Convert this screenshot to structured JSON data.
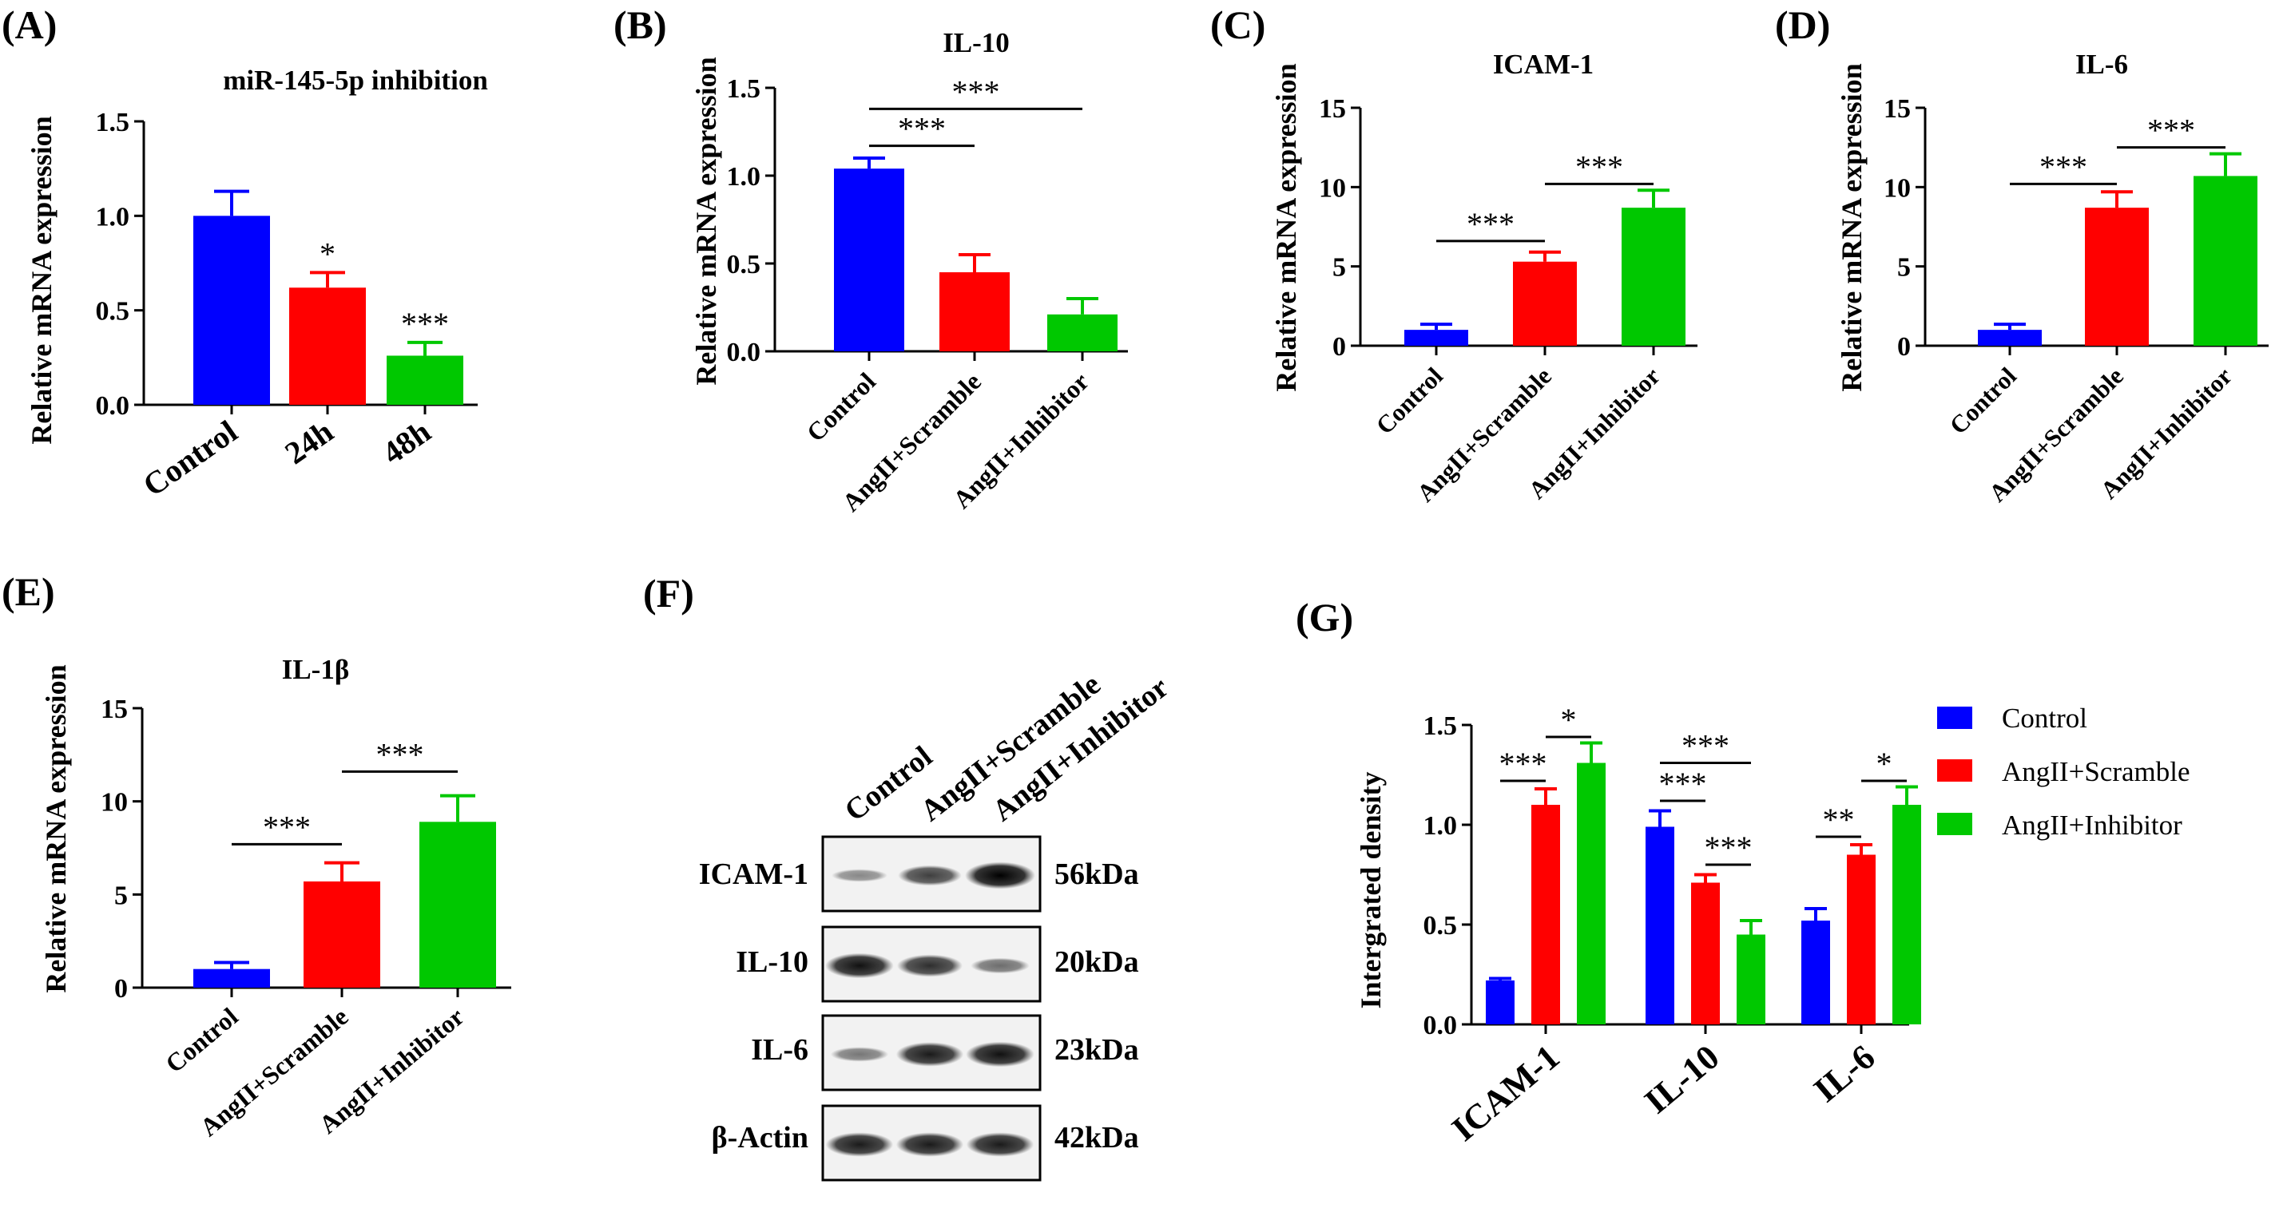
{
  "figure": {
    "colors": {
      "Control": "#0000FF",
      "AngII+Scramble": "#FF0000",
      "AngII+Inhibitor": "#00C800",
      "axis": "#000000"
    }
  },
  "chart_data": [
    {
      "id": "A",
      "panel_label": "(A)",
      "type": "bar",
      "title": "miR-145-5p inhibition",
      "ylabel": "Relative mRNA expression",
      "xlabel": "",
      "ylim": [
        0,
        1.5
      ],
      "yticks": [
        "0.0",
        "0.5",
        "1.0",
        "1.5"
      ],
      "categories": [
        "Control",
        "24h",
        "48h"
      ],
      "values": [
        1.0,
        0.62,
        0.26
      ],
      "errors": [
        0.13,
        0.08,
        0.07
      ],
      "bar_labels": [
        "",
        "*",
        "***"
      ],
      "comparisons": []
    },
    {
      "id": "B",
      "panel_label": "(B)",
      "type": "bar",
      "title": "IL-10",
      "ylabel": "Relative mRNA expression",
      "xlabel": "",
      "ylim": [
        0,
        1.5
      ],
      "yticks": [
        "0.0",
        "0.5",
        "1.0",
        "1.5"
      ],
      "categories": [
        "Control",
        "AngII+Scramble",
        "AngII+Inhibitor"
      ],
      "values": [
        1.04,
        0.45,
        0.21
      ],
      "errors": [
        0.06,
        0.1,
        0.09
      ],
      "comparisons": [
        {
          "from": 0,
          "to": 1,
          "label": "***",
          "y": 1.17
        },
        {
          "from": 0,
          "to": 2,
          "label": "***",
          "y": 1.38
        }
      ]
    },
    {
      "id": "C",
      "panel_label": "(C)",
      "type": "bar",
      "title": "ICAM-1",
      "ylabel": "Relative mRNA expression",
      "xlabel": "",
      "ylim": [
        0,
        15
      ],
      "yticks": [
        "0",
        "5",
        "10",
        "15"
      ],
      "categories": [
        "Control",
        "AngII+Scramble",
        "AngII+Inhibitor"
      ],
      "values": [
        1.0,
        5.3,
        8.7
      ],
      "errors": [
        0.35,
        0.6,
        1.1
      ],
      "comparisons": [
        {
          "from": 0,
          "to": 1,
          "label": "***",
          "y": 6.6
        },
        {
          "from": 1,
          "to": 2,
          "label": "***",
          "y": 10.2
        }
      ]
    },
    {
      "id": "D",
      "panel_label": "(D)",
      "type": "bar",
      "title": "IL-6",
      "ylabel": "Relative mRNA expression",
      "xlabel": "",
      "ylim": [
        0,
        15
      ],
      "yticks": [
        "0",
        "5",
        "10",
        "15"
      ],
      "categories": [
        "Control",
        "AngII+Scramble",
        "AngII+Inhibitor"
      ],
      "values": [
        1.0,
        8.7,
        10.7
      ],
      "errors": [
        0.35,
        1.0,
        1.4
      ],
      "comparisons": [
        {
          "from": 0,
          "to": 1,
          "label": "***",
          "y": 10.2
        },
        {
          "from": 1,
          "to": 2,
          "label": "***",
          "y": 12.5
        }
      ]
    },
    {
      "id": "E",
      "panel_label": "(E)",
      "type": "bar",
      "title": "IL-1β",
      "ylabel": "Relative mRNA expression",
      "xlabel": "",
      "ylim": [
        0,
        15
      ],
      "yticks": [
        "0",
        "5",
        "10",
        "15"
      ],
      "categories": [
        "Control",
        "AngII+Scramble",
        "AngII+Inhibitor"
      ],
      "values": [
        1.0,
        5.7,
        8.9
      ],
      "errors": [
        0.35,
        1.0,
        1.4
      ],
      "comparisons": [
        {
          "from": 0,
          "to": 1,
          "label": "***",
          "y": 7.7
        },
        {
          "from": 1,
          "to": 2,
          "label": "***",
          "y": 11.6
        }
      ]
    },
    {
      "id": "G",
      "panel_label": "(G)",
      "type": "bar",
      "ylabel": "Intergrated density",
      "xlabel": "",
      "ylim": [
        0,
        1.5
      ],
      "yticks": [
        "0.0",
        "0.5",
        "1.0",
        "1.5"
      ],
      "categories": [
        "ICAM-1",
        "IL-10",
        "IL-6"
      ],
      "series": [
        {
          "name": "Control",
          "values": [
            0.22,
            0.99,
            0.52
          ],
          "errors": [
            0.01,
            0.08,
            0.06
          ]
        },
        {
          "name": "AngII+Scramble",
          "values": [
            1.1,
            0.71,
            0.85
          ],
          "errors": [
            0.08,
            0.04,
            0.05
          ]
        },
        {
          "name": "AngII+Inhibitor",
          "values": [
            1.31,
            0.45,
            1.1
          ],
          "errors": [
            0.1,
            0.07,
            0.09
          ]
        }
      ],
      "comparisons": [
        {
          "group": 0,
          "from": 0,
          "to": 1,
          "label": "***",
          "y": 1.22
        },
        {
          "group": 0,
          "from": 1,
          "to": 2,
          "label": "*",
          "y": 1.44
        },
        {
          "group": 1,
          "from": 0,
          "to": 1,
          "label": "***",
          "y": 1.12
        },
        {
          "group": 1,
          "from": 0,
          "to": 2,
          "label": "***",
          "y": 1.31
        },
        {
          "group": 1,
          "from": 1,
          "to": 2,
          "label": "***",
          "y": 0.8
        },
        {
          "group": 2,
          "from": 0,
          "to": 1,
          "label": "**",
          "y": 0.94
        },
        {
          "group": 2,
          "from": 1,
          "to": 2,
          "label": "*",
          "y": 1.22
        }
      ],
      "legend": [
        "Control",
        "AngII+Scramble",
        "AngII+Inhibitor"
      ],
      "legend_position": "top-right"
    }
  ],
  "western_blot": {
    "panel_label": "(F)",
    "lanes": [
      "Control",
      "AngII+Scramble",
      "AngII+Inhibitor"
    ],
    "rows": [
      {
        "protein": "ICAM-1",
        "size": "56kDa",
        "band_intensity": [
          0.25,
          0.65,
          1.0
        ]
      },
      {
        "protein": "IL-10",
        "size": "20kDa",
        "band_intensity": [
          0.9,
          0.75,
          0.4
        ]
      },
      {
        "protein": "IL-6",
        "size": "23kDa",
        "band_intensity": [
          0.35,
          0.85,
          0.9
        ]
      },
      {
        "protein": "β-Actin",
        "size": "42kDa",
        "band_intensity": [
          0.85,
          0.85,
          0.85
        ]
      }
    ]
  }
}
